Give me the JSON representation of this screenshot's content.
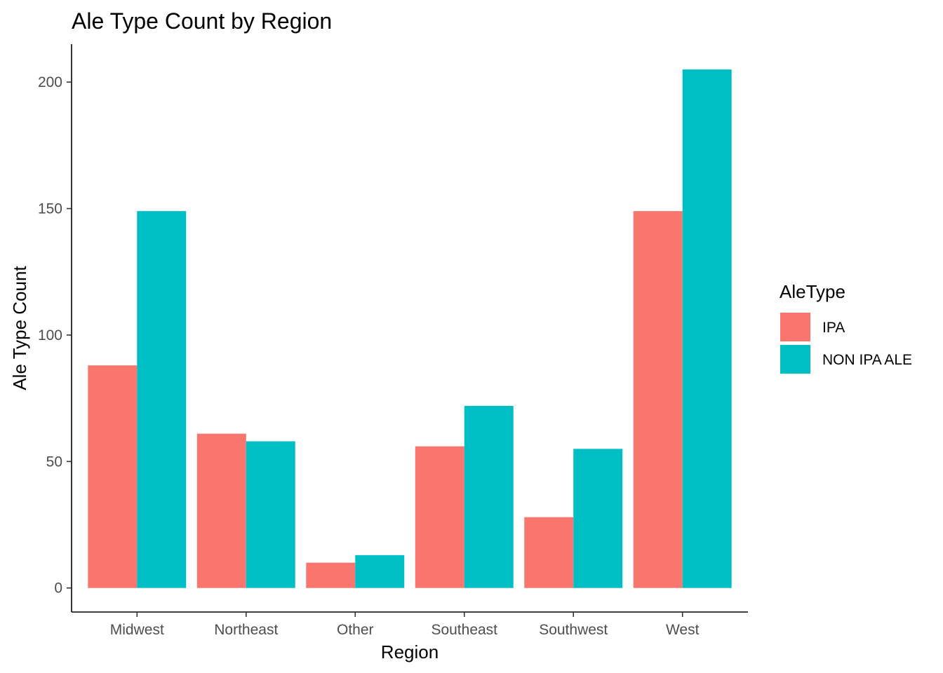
{
  "chart_data": {
    "type": "bar",
    "title": "Ale Type Count by Region",
    "xlabel": "Region",
    "ylabel": "Ale Type Count",
    "categories": [
      "Midwest",
      "Northeast",
      "Other",
      "Southeast",
      "Southwest",
      "West"
    ],
    "series": [
      {
        "name": "IPA",
        "color": "#F8766D",
        "values": [
          88,
          61,
          10,
          56,
          28,
          149
        ]
      },
      {
        "name": "NON IPA ALE",
        "color": "#00BFC4",
        "values": [
          149,
          58,
          13,
          72,
          55,
          205
        ]
      }
    ],
    "ylim": [
      -9.5,
      215
    ],
    "yticks": [
      0,
      50,
      100,
      150,
      200
    ],
    "grid": false,
    "legend": {
      "title": "AleType",
      "position": "right"
    }
  }
}
